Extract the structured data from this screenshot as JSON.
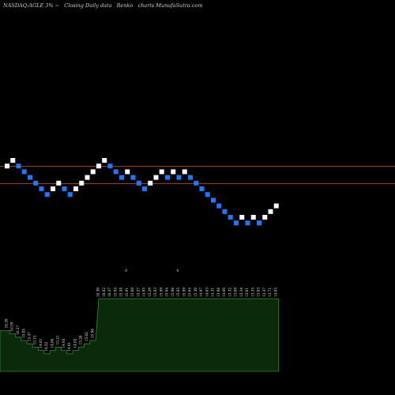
{
  "header": {
    "ticker": "NASDAQ:AGLE",
    "change": "3%",
    "arrow": "~",
    "description": "Closing Daily data",
    "chart_kind": "Renko",
    "site": "charts MunafaSutra.com"
  },
  "colors": {
    "background": "#000000",
    "up_brick": "#ffffff",
    "down_brick": "#1e78ff",
    "reference_line": "#c0522a",
    "volume_fill": "#0b2a0b",
    "volume_edge": "#2f8a2f",
    "text": "#e8e8e8"
  },
  "chart_data": {
    "type": "renko",
    "title": "NASDAQ:AGLE Closing Daily data Renko charts",
    "brick_size": 1,
    "reference_levels": [
      16,
      13
    ],
    "bricks": [
      {
        "dir": "up",
        "level": 16
      },
      {
        "dir": "up",
        "level": 17
      },
      {
        "dir": "down",
        "level": 16
      },
      {
        "dir": "down",
        "level": 15
      },
      {
        "dir": "down",
        "level": 14
      },
      {
        "dir": "down",
        "level": 13
      },
      {
        "dir": "down",
        "level": 12
      },
      {
        "dir": "down",
        "level": 11
      },
      {
        "dir": "up",
        "level": 12
      },
      {
        "dir": "up",
        "level": 13
      },
      {
        "dir": "down",
        "level": 12
      },
      {
        "dir": "down",
        "level": 11
      },
      {
        "dir": "up",
        "level": 12
      },
      {
        "dir": "up",
        "level": 13
      },
      {
        "dir": "up",
        "level": 14
      },
      {
        "dir": "up",
        "level": 15
      },
      {
        "dir": "up",
        "level": 16
      },
      {
        "dir": "up",
        "level": 17
      },
      {
        "dir": "down",
        "level": 16
      },
      {
        "dir": "down",
        "level": 15
      },
      {
        "dir": "down",
        "level": 14
      },
      {
        "dir": "up",
        "level": 15
      },
      {
        "dir": "down",
        "level": 14
      },
      {
        "dir": "down",
        "level": 13
      },
      {
        "dir": "down",
        "level": 12
      },
      {
        "dir": "up",
        "level": 13
      },
      {
        "dir": "up",
        "level": 14
      },
      {
        "dir": "up",
        "level": 15
      },
      {
        "dir": "down",
        "level": 14
      },
      {
        "dir": "up",
        "level": 15
      },
      {
        "dir": "down",
        "level": 14
      },
      {
        "dir": "up",
        "level": 15
      },
      {
        "dir": "down",
        "level": 14
      },
      {
        "dir": "down",
        "level": 13
      },
      {
        "dir": "down",
        "level": 12
      },
      {
        "dir": "down",
        "level": 11
      },
      {
        "dir": "down",
        "level": 10
      },
      {
        "dir": "down",
        "level": 9
      },
      {
        "dir": "down",
        "level": 8
      },
      {
        "dir": "down",
        "level": 7
      },
      {
        "dir": "down",
        "level": 6
      },
      {
        "dir": "up",
        "level": 7
      },
      {
        "dir": "down",
        "level": 6
      },
      {
        "dir": "up",
        "level": 7
      },
      {
        "dir": "down",
        "level": 6
      },
      {
        "dir": "up",
        "level": 7
      },
      {
        "dir": "up",
        "level": 8
      },
      {
        "dir": "up",
        "level": 9
      }
    ],
    "volume_panel": {
      "low_values": [
        8,
        7,
        6,
        5,
        4,
        3,
        2,
        1,
        2,
        3,
        2,
        1,
        2,
        3,
        4,
        5
      ],
      "high_start_index": 16,
      "high_value": 100
    },
    "markers": [
      "0",
      "0"
    ],
    "brick_labels": [
      "16.29",
      "16.59",
      "16.27",
      "15.85",
      "15.47",
      "15.15",
      "14.81",
      "14.52",
      "14.86",
      "15.21",
      "14.93",
      "14.61",
      "14.92",
      "15.26",
      "15.62",
      "15.96",
      "16.30",
      "16.62",
      "16.27",
      "15.94",
      "15.58",
      "15.91",
      "15.60",
      "15.27",
      "14.95",
      "15.29",
      "15.63",
      "15.99",
      "15.64",
      "15.98",
      "15.65",
      "15.99",
      "15.64",
      "15.30",
      "14.97",
      "14.63",
      "14.31",
      "13.98",
      "13.66",
      "13.32",
      "13.00",
      "13.34",
      "13.01",
      "13.35",
      "13.03",
      "13.37",
      "13.71",
      "14.05"
    ]
  }
}
